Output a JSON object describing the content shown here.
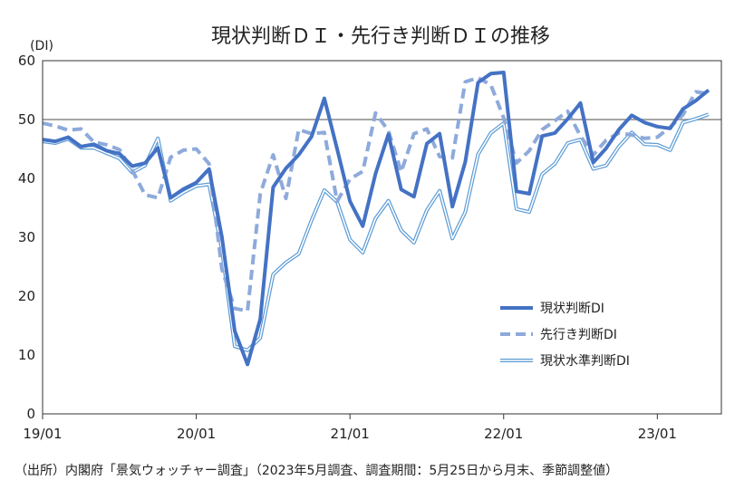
{
  "chart_data": {
    "type": "line",
    "title": "現状判断ＤＩ・先行き判断ＤＩの推移",
    "ylabel": "(DI)",
    "xlabel": "",
    "ylim": [
      0,
      60
    ],
    "yticks": [
      0,
      10,
      20,
      30,
      40,
      50,
      60
    ],
    "x_tick_labels": [
      "19/01",
      "20/01",
      "21/01",
      "22/01",
      "23/01"
    ],
    "x_range": [
      "2019-01",
      "2023-05"
    ],
    "reference_line": 50,
    "grid": false,
    "legend_position": "right",
    "series": [
      {
        "name": "現状判断DI",
        "color": "#4472c4",
        "style": "solid-thick",
        "x": [
          "2019-01",
          "2019-02",
          "2019-03",
          "2019-04",
          "2019-05",
          "2019-06",
          "2019-07",
          "2019-08",
          "2019-09",
          "2019-10",
          "2019-11",
          "2019-12",
          "2020-01",
          "2020-02",
          "2020-03",
          "2020-04",
          "2020-05",
          "2020-06",
          "2020-07",
          "2020-08",
          "2020-09",
          "2020-10",
          "2020-11",
          "2020-12",
          "2021-01",
          "2021-02",
          "2021-03",
          "2021-04",
          "2021-05",
          "2021-06",
          "2021-07",
          "2021-08",
          "2021-09",
          "2021-10",
          "2021-11",
          "2021-12",
          "2022-01",
          "2022-02",
          "2022-03",
          "2022-04",
          "2022-05",
          "2022-06",
          "2022-07",
          "2022-08",
          "2022-09",
          "2022-10",
          "2022-11",
          "2022-12",
          "2023-01",
          "2023-02",
          "2023-03",
          "2023-04",
          "2023-05"
        ],
        "values": [
          46.6,
          46.3,
          47.0,
          45.4,
          45.8,
          44.7,
          44.2,
          42.1,
          42.6,
          45.2,
          36.7,
          38.2,
          39.3,
          41.6,
          30.1,
          14.1,
          8.4,
          16.1,
          38.5,
          41.7,
          44.0,
          47.1,
          53.6,
          45.0,
          36.1,
          31.9,
          40.8,
          47.5,
          38.1,
          36.9,
          45.9,
          47.6,
          35.2,
          42.8,
          56.3,
          57.8,
          58.0,
          37.8,
          37.4,
          47.2,
          47.7,
          50.1,
          52.8,
          42.7,
          45.1,
          48.3,
          50.7,
          49.5,
          48.8,
          48.5,
          51.8,
          53.2,
          55.0
        ]
      },
      {
        "name": "先行き判断DI",
        "color": "#8eaadb",
        "style": "dashed-thick",
        "x": [
          "2019-01",
          "2019-02",
          "2019-03",
          "2019-04",
          "2019-05",
          "2019-06",
          "2019-07",
          "2019-08",
          "2019-09",
          "2019-10",
          "2019-11",
          "2019-12",
          "2020-01",
          "2020-02",
          "2020-03",
          "2020-04",
          "2020-05",
          "2020-06",
          "2020-07",
          "2020-08",
          "2020-09",
          "2020-10",
          "2020-11",
          "2020-12",
          "2021-01",
          "2021-02",
          "2021-03",
          "2021-04",
          "2021-05",
          "2021-06",
          "2021-07",
          "2021-08",
          "2021-09",
          "2021-10",
          "2021-11",
          "2021-12",
          "2022-01",
          "2022-02",
          "2022-03",
          "2022-04",
          "2022-05",
          "2022-06",
          "2022-07",
          "2022-08",
          "2022-09",
          "2022-10",
          "2022-11",
          "2022-12",
          "2023-01",
          "2023-02",
          "2023-03",
          "2023-04",
          "2023-05"
        ],
        "values": [
          49.4,
          48.9,
          48.2,
          48.4,
          46.2,
          45.7,
          44.9,
          41.4,
          37.2,
          36.7,
          43.6,
          44.8,
          45.0,
          42.5,
          24.6,
          17.9,
          17.5,
          37.4,
          44.0,
          36.6,
          48.3,
          47.6,
          47.8,
          36.1,
          39.9,
          41.2,
          51.1,
          48.1,
          41.1,
          47.6,
          48.4,
          43.7,
          43.5,
          56.4,
          57.1,
          55.9,
          50.3,
          42.6,
          44.7,
          48.3,
          49.8,
          51.4,
          47.2,
          44.0,
          46.5,
          47.7,
          47.4,
          46.8,
          47.0,
          48.7,
          50.8,
          54.7,
          54.4
        ]
      },
      {
        "name": "現状水準判断DI",
        "color": "#5b9bd5",
        "style": "double-thin",
        "x": [
          "2019-01",
          "2019-02",
          "2019-03",
          "2019-04",
          "2019-05",
          "2019-06",
          "2019-07",
          "2019-08",
          "2019-09",
          "2019-10",
          "2019-11",
          "2019-12",
          "2020-01",
          "2020-02",
          "2020-03",
          "2020-04",
          "2020-05",
          "2020-06",
          "2020-07",
          "2020-08",
          "2020-09",
          "2020-10",
          "2020-11",
          "2020-12",
          "2021-01",
          "2021-02",
          "2021-03",
          "2021-04",
          "2021-05",
          "2021-06",
          "2021-07",
          "2021-08",
          "2021-09",
          "2021-10",
          "2021-11",
          "2021-12",
          "2022-01",
          "2022-02",
          "2022-03",
          "2022-04",
          "2022-05",
          "2022-06",
          "2022-07",
          "2022-08",
          "2022-09",
          "2022-10",
          "2022-11",
          "2022-12",
          "2023-01",
          "2023-02",
          "2023-03",
          "2023-04",
          "2023-05"
        ],
        "values": [
          46.3,
          46.0,
          46.7,
          45.2,
          45.2,
          44.3,
          43.4,
          41.0,
          42.2,
          46.8,
          36.2,
          37.6,
          38.7,
          39.0,
          28.0,
          11.5,
          10.8,
          12.9,
          23.7,
          25.7,
          27.2,
          32.9,
          38.0,
          36.0,
          29.6,
          27.4,
          33.2,
          36.2,
          31.2,
          29.1,
          34.6,
          37.9,
          29.8,
          34.3,
          44.1,
          47.7,
          49.4,
          34.8,
          34.3,
          40.7,
          42.5,
          46.0,
          46.6,
          41.6,
          42.2,
          45.4,
          47.8,
          45.8,
          45.7,
          44.8,
          49.5,
          50.1,
          50.9
        ]
      }
    ]
  },
  "source_note": "（出所）内閣府「景気ウォッチャー調査」（2023年5月調査、調査期間：5月25日から月末、季節調整値）"
}
